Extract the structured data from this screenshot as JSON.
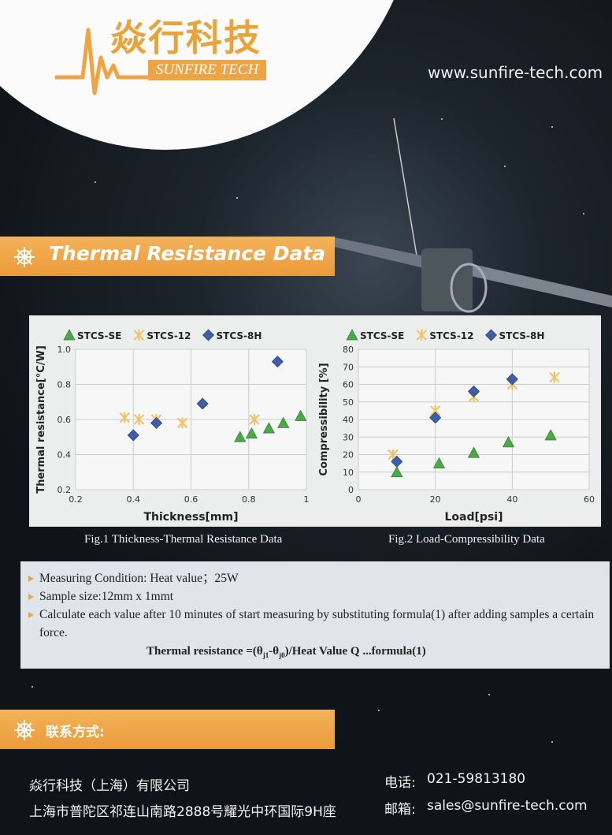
{
  "header": {
    "logo_cn": "焱行科技",
    "logo_en": "SUNFIRE TECH",
    "website": "www.sunfire-tech.com"
  },
  "section_title": "Thermal Resistance Data",
  "chart_data": [
    {
      "type": "scatter",
      "caption": "Fig.1 Thickness-Thermal Resistance Data",
      "x_label": "Thickness[mm]",
      "y_label": "Thermal resistance[°C/W]",
      "xlim": [
        0.2,
        1
      ],
      "xticks": [
        0.2,
        0.4,
        0.6,
        0.8,
        1
      ],
      "ylim": [
        0.2,
        1
      ],
      "yticks": [
        0.2,
        0.4,
        0.6,
        0.8,
        {
          "value": 1,
          "label": "1.0"
        }
      ],
      "grid": true,
      "series": [
        {
          "name": "STCS-SE",
          "color": "#4da84a",
          "marker": "triangle",
          "x": [
            0.77,
            0.81,
            0.87,
            0.92,
            0.98
          ],
          "values": [
            0.5,
            0.52,
            0.55,
            0.58,
            0.62
          ]
        },
        {
          "name": "STCS-12",
          "color": "#eec46a",
          "marker": "x",
          "x": [
            0.37,
            0.42,
            0.48,
            0.57,
            0.82
          ],
          "values": [
            0.61,
            0.6,
            0.6,
            0.58,
            0.6
          ]
        },
        {
          "name": "STCS-8H",
          "color": "#3d5fa6",
          "marker": "diamond",
          "x": [
            0.4,
            0.48,
            0.64,
            0.9
          ],
          "values": [
            0.51,
            0.58,
            0.69,
            0.93
          ]
        }
      ]
    },
    {
      "type": "scatter",
      "caption": "Fig.2 Load-Compressibility Data",
      "x_label": "Load[psi]",
      "y_label": "Compressibility [%]",
      "xlim": [
        0,
        60
      ],
      "xticks": [
        0,
        20,
        40,
        60
      ],
      "ylim": [
        0,
        80
      ],
      "yticks": [
        0,
        10,
        20,
        30,
        40,
        50,
        60,
        70,
        80
      ],
      "grid": true,
      "series": [
        {
          "name": "STCS-SE",
          "color": "#4da84a",
          "marker": "triangle",
          "x": [
            10,
            21,
            30,
            39,
            50
          ],
          "values": [
            10,
            15,
            21,
            27,
            31
          ]
        },
        {
          "name": "STCS-12",
          "color": "#eec46a",
          "marker": "x",
          "x": [
            9,
            20,
            30,
            40,
            51
          ],
          "values": [
            20,
            45,
            53,
            60,
            64
          ]
        },
        {
          "name": "STCS-8H",
          "color": "#3d5fa6",
          "marker": "diamond",
          "x": [
            10,
            20,
            30,
            40
          ],
          "values": [
            16,
            41,
            56,
            63
          ]
        }
      ]
    }
  ],
  "notes": {
    "items": [
      "Measuring Condition: Heat value；25W",
      "Sample size:12mm x 1mmt",
      "Calculate each value after 10 minutes of start measuring by substituting formula(1) after adding samples a certain force."
    ],
    "formula": {
      "lead": "Thermal resistance =(θ",
      "sub1": "j1",
      "mid": "-θ",
      "sub2": "j0",
      "tail": ")/Heat Value Q ...formula(1)"
    }
  },
  "contact": {
    "title": "联系方式:",
    "company": "焱行科技（上海）有限公司",
    "address": "上海市普陀区祁连山南路2888号耀光中环国际9H座",
    "phone_label": "电话:",
    "phone": "021-59813180",
    "email_label": "邮箱:",
    "email": "sales@sunfire-tech.com"
  }
}
